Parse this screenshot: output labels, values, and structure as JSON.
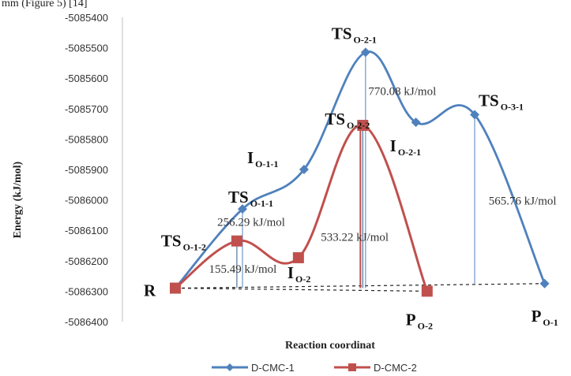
{
  "header_text": "mm (Figure 5) [14]",
  "chart_data": {
    "type": "line",
    "xlabel": "Reaction coordinat",
    "ylabel": "Energy (kJ/mol)",
    "ylim": [
      -5086400,
      -5085400
    ],
    "y_ticks": [
      "-5085400",
      "-5085500",
      "-5085600",
      "-5085700",
      "-5085800",
      "-5085900",
      "-5086000",
      "-5086100",
      "-5086200",
      "-5086300",
      "-5086400"
    ],
    "grid": false,
    "legend_position": "bottom",
    "series": [
      {
        "name": "D-CMC-1",
        "color": "#4f81bd",
        "marker": "diamond",
        "points": [
          {
            "x": 0,
            "y": -5086290
          },
          {
            "x": 1.2,
            "y": -5086030
          },
          {
            "x": 2.3,
            "y": -5085900
          },
          {
            "x": 3.4,
            "y": -5085515
          },
          {
            "x": 4.3,
            "y": -5085745
          },
          {
            "x": 5.35,
            "y": -5085720
          },
          {
            "x": 6.6,
            "y": -5086275
          }
        ]
      },
      {
        "name": "D-CMC-2",
        "color": "#c0504d",
        "marker": "square",
        "points": [
          {
            "x": 0,
            "y": -5086290
          },
          {
            "x": 1.1,
            "y": -5086135
          },
          {
            "x": 2.2,
            "y": -5086190
          },
          {
            "x": 3.35,
            "y": -5085755
          },
          {
            "x": 4.5,
            "y": -5086300
          }
        ]
      }
    ],
    "point_labels": [
      {
        "main": "R",
        "sub": "",
        "x": 0,
        "y": -5086290,
        "dx": -40,
        "dy": 10
      },
      {
        "main": "TS",
        "sub": "O-1-1",
        "x": 1.2,
        "y": -5086030,
        "dx": -18,
        "dy": -8
      },
      {
        "main": "TS",
        "sub": "O-1-2",
        "x": 1.1,
        "y": -5086135,
        "dx": -96,
        "dy": 7
      },
      {
        "main": "I",
        "sub": "O-1-1",
        "x": 2.3,
        "y": -5085900,
        "dx": -72,
        "dy": -8
      },
      {
        "main": "I",
        "sub": "O-2",
        "x": 2.2,
        "y": -5086190,
        "dx": -14,
        "dy": 26
      },
      {
        "main": "TS",
        "sub": "O-2-1",
        "x": 3.4,
        "y": -5085515,
        "dx": -43,
        "dy": -17
      },
      {
        "main": "TS",
        "sub": "O-2-2",
        "x": 3.35,
        "y": -5085755,
        "dx": -48,
        "dy": -1
      },
      {
        "main": "I",
        "sub": "O-2-1",
        "x": 4.3,
        "y": -5085745,
        "dx": -33,
        "dy": 37
      },
      {
        "main": "TS",
        "sub": "O-3-1",
        "x": 5.35,
        "y": -5085720,
        "dx": 5,
        "dy": -11
      },
      {
        "main": "P",
        "sub": "O-2",
        "x": 4.5,
        "y": -5086300,
        "dx": -27,
        "dy": 43
      },
      {
        "main": "P",
        "sub": "O-1",
        "x": 6.6,
        "y": -5086275,
        "dx": -17,
        "dy": 48
      }
    ],
    "energy_annotations": [
      {
        "text": "256.29 kJ/mol",
        "x": 1.2,
        "y": -5086030,
        "base_y": -5086290,
        "label_x": 0.75,
        "label_y": -5086085
      },
      {
        "text": "155.49 kJ/mol",
        "x": 1.1,
        "y": -5086135,
        "base_y": -5086290,
        "label_x": 0.6,
        "label_y": -5086240
      },
      {
        "text": "770.08 kJ/mol",
        "x": 3.4,
        "y": -5085515,
        "base_y": -5086290,
        "label_x": 3.45,
        "label_y": -5085655
      },
      {
        "text": "533.22 kJ/mol",
        "x": 3.35,
        "y": -5085755,
        "base_y": -5086290,
        "label_x": 2.6,
        "label_y": -5086135
      },
      {
        "text": "565.76 kJ/mol",
        "x": 5.35,
        "y": -5085720,
        "base_y": -5086275,
        "label_x": 5.6,
        "label_y": -5086015
      }
    ]
  }
}
